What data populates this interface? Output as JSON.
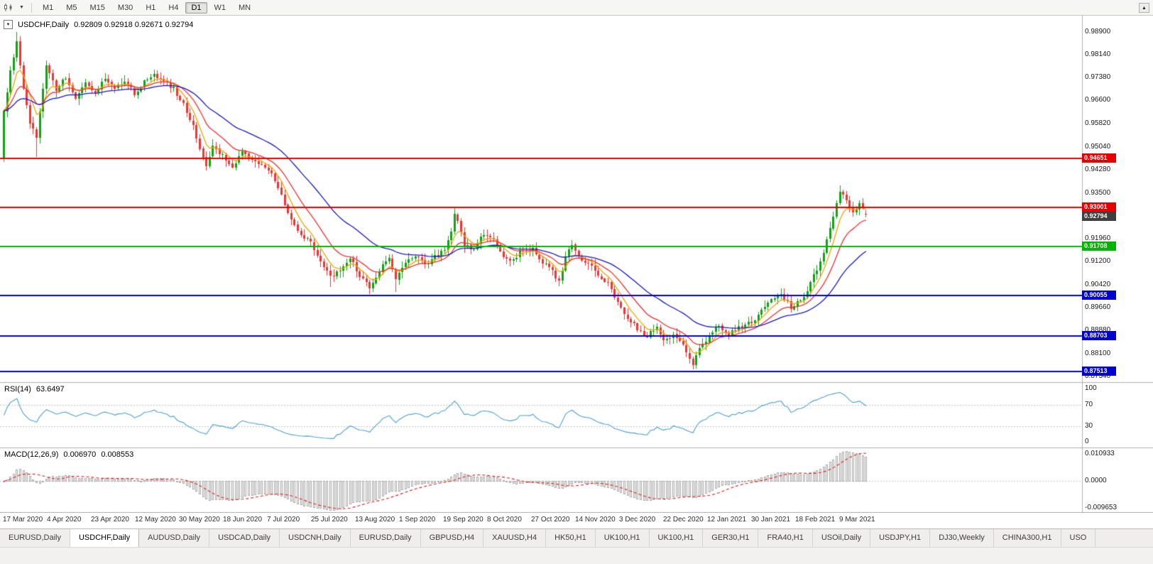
{
  "toolbar": {
    "timeframes": [
      "M1",
      "M5",
      "M15",
      "M30",
      "H1",
      "H4",
      "D1",
      "W1",
      "MN"
    ],
    "active_timeframe": "D1"
  },
  "chart_title": {
    "symbol": "USDCHF,Daily",
    "ohlc": "0.92809 0.92918 0.92671 0.92794"
  },
  "chart_data": {
    "type": "candlestick",
    "symbol": "USDCHF",
    "period": "Daily",
    "x_labels": [
      "17 Mar 2020",
      "4 Apr 2020",
      "23 Apr 2020",
      "12 May 2020",
      "30 May 2020",
      "18 Jun 2020",
      "7 Jul 2020",
      "25 Jul 2020",
      "13 Aug 2020",
      "1 Sep 2020",
      "19 Sep 2020",
      "8 Oct 2020",
      "27 Oct 2020",
      "14 Nov 2020",
      "3 Dec 2020",
      "22 Dec 2020",
      "12 Jan 2021",
      "30 Jan 2021",
      "18 Feb 2021",
      "9 Mar 2021"
    ],
    "y_ticks": [
      "0.98900",
      "0.98140",
      "0.97380",
      "0.96600",
      "0.95820",
      "0.95040",
      "0.94280",
      "0.93500",
      "0.92740",
      "0.91960",
      "0.91200",
      "0.90420",
      "0.89660",
      "0.88880",
      "0.88100",
      "0.87340"
    ],
    "price_range": {
      "top": 0.99448,
      "bottom": 0.87149
    },
    "horizontal_lines": [
      {
        "price": 0.94651,
        "label": "0.94651",
        "color": "#e60000"
      },
      {
        "price": 0.93001,
        "label": "0.93001",
        "color": "#e60000"
      },
      {
        "price": 0.91708,
        "label": "0.91708",
        "color": "#00b400"
      },
      {
        "price": 0.90055,
        "label": "0.90055",
        "color": "#0000d2"
      },
      {
        "price": 0.88703,
        "label": "0.88703",
        "color": "#0000d2"
      },
      {
        "price": 0.87513,
        "label": "0.87513",
        "color": "#0000d2"
      }
    ],
    "current_price": {
      "label": "0.92794",
      "value": 0.92794,
      "color": "#3f3f3f"
    },
    "candles": {
      "up_color": "#0da314",
      "down_color": "#ef3434",
      "days": 265,
      "anchors": [
        [
          0,
          0.963
        ],
        [
          2,
          0.9755
        ],
        [
          4,
          0.986
        ],
        [
          6,
          0.9705
        ],
        [
          8,
          0.9585
        ],
        [
          10,
          0.9535
        ],
        [
          13,
          0.9785
        ],
        [
          16,
          0.9695
        ],
        [
          19,
          0.974
        ],
        [
          22,
          0.9665
        ],
        [
          25,
          0.972
        ],
        [
          28,
          0.969
        ],
        [
          31,
          0.9735
        ],
        [
          34,
          0.97
        ],
        [
          37,
          0.972
        ],
        [
          40,
          0.9685
        ],
        [
          43,
          0.972
        ],
        [
          46,
          0.975
        ],
        [
          49,
          0.9725
        ],
        [
          52,
          0.97
        ],
        [
          55,
          0.9645
        ],
        [
          58,
          0.9575
        ],
        [
          60,
          0.9505
        ],
        [
          62,
          0.9435
        ],
        [
          64,
          0.9505
        ],
        [
          67,
          0.9475
        ],
        [
          70,
          0.944
        ],
        [
          73,
          0.9485
        ],
        [
          76,
          0.946
        ],
        [
          79,
          0.945
        ],
        [
          82,
          0.941
        ],
        [
          85,
          0.934
        ],
        [
          88,
          0.9265
        ],
        [
          91,
          0.9205
        ],
        [
          94,
          0.9185
        ],
        [
          97,
          0.912
        ],
        [
          100,
          0.9065
        ],
        [
          103,
          0.909
        ],
        [
          106,
          0.913
        ],
        [
          109,
          0.9075
        ],
        [
          112,
          0.9035
        ],
        [
          115,
          0.909
        ],
        [
          118,
          0.913
        ],
        [
          120,
          0.9065
        ],
        [
          123,
          0.911
        ],
        [
          126,
          0.9145
        ],
        [
          129,
          0.9105
        ],
        [
          132,
          0.9135
        ],
        [
          135,
          0.9155
        ],
        [
          137,
          0.922
        ],
        [
          138,
          0.9285
        ],
        [
          139,
          0.925
        ],
        [
          141,
          0.9175
        ],
        [
          144,
          0.916
        ],
        [
          147,
          0.9215
        ],
        [
          150,
          0.919
        ],
        [
          153,
          0.914
        ],
        [
          156,
          0.9125
        ],
        [
          159,
          0.9165
        ],
        [
          162,
          0.916
        ],
        [
          165,
          0.912
        ],
        [
          168,
          0.909
        ],
        [
          170,
          0.905
        ],
        [
          172,
          0.913
        ],
        [
          174,
          0.918
        ],
        [
          176,
          0.914
        ],
        [
          179,
          0.911
        ],
        [
          182,
          0.9075
        ],
        [
          185,
          0.9045
        ],
        [
          188,
          0.8985
        ],
        [
          191,
          0.8925
        ],
        [
          194,
          0.8895
        ],
        [
          197,
          0.887
        ],
        [
          200,
          0.8895
        ],
        [
          202,
          0.8855
        ],
        [
          205,
          0.8875
        ],
        [
          208,
          0.8835
        ],
        [
          211,
          0.8775
        ],
        [
          213,
          0.8825
        ],
        [
          216,
          0.887
        ],
        [
          219,
          0.8905
        ],
        [
          222,
          0.8875
        ],
        [
          225,
          0.89
        ],
        [
          229,
          0.8915
        ],
        [
          232,
          0.8955
        ],
        [
          235,
          0.8995
        ],
        [
          238,
          0.9015
        ],
        [
          241,
          0.8965
        ],
        [
          243,
          0.8985
        ],
        [
          245,
          0.8995
        ],
        [
          247,
          0.9045
        ],
        [
          249,
          0.9095
        ],
        [
          251,
          0.9155
        ],
        [
          253,
          0.9235
        ],
        [
          255,
          0.931
        ],
        [
          256,
          0.9355
        ],
        [
          258,
          0.933
        ],
        [
          260,
          0.9285
        ],
        [
          262,
          0.932
        ],
        [
          264,
          0.92794
        ]
      ],
      "wick_events": [
        {
          "day": 4,
          "high": 0.989
        },
        {
          "day": 10,
          "low": 0.947
        },
        {
          "day": 62,
          "low": 0.9425
        },
        {
          "day": 100,
          "low": 0.9035
        },
        {
          "day": 112,
          "low": 0.9015
        },
        {
          "day": 120,
          "low": 0.9018
        },
        {
          "day": 138,
          "high": 0.9296
        },
        {
          "day": 170,
          "low": 0.904
        },
        {
          "day": 211,
          "low": 0.8757
        },
        {
          "day": 256,
          "high": 0.9375
        }
      ],
      "last": {
        "open": 0.92809,
        "high": 0.92918,
        "low": 0.92671,
        "close": 0.92794
      }
    },
    "moving_averages": [
      {
        "period": 6,
        "color": "#f0a500"
      },
      {
        "period": 14,
        "color": "#f03030"
      },
      {
        "period": 34,
        "color": "#1818cc"
      }
    ],
    "rsi": {
      "label": "RSI(14)",
      "value": "63.6497",
      "period": 14,
      "levels": [
        "100",
        "70",
        "30",
        "0"
      ],
      "color": "#4f9fd8"
    },
    "macd": {
      "label": "MACD(12,26,9)",
      "main": "0.006970",
      "signal": "0.008553",
      "fast": 12,
      "slow": 26,
      "signal_period": 9,
      "axis_labels": [
        "0.010933",
        "0.0000",
        "-0.009653"
      ],
      "histogram_color": "#a9a9a9",
      "signal_color": "#e02020"
    }
  },
  "bottom_tabs": [
    {
      "label": "EURUSD,Daily"
    },
    {
      "label": "USDCHF,Daily",
      "active": true
    },
    {
      "label": "AUDUSD,Daily"
    },
    {
      "label": "USDCAD,Daily"
    },
    {
      "label": "USDCNH,Daily"
    },
    {
      "label": "EURUSD,Daily"
    },
    {
      "label": "GBPUSD,H4"
    },
    {
      "label": "XAUUSD,H4"
    },
    {
      "label": "HK50,H1"
    },
    {
      "label": "UK100,H1"
    },
    {
      "label": "UK100,H1"
    },
    {
      "label": "GER30,H1"
    },
    {
      "label": "FRA40,H1"
    },
    {
      "label": "USOil,Daily"
    },
    {
      "label": "USDJPY,H1"
    },
    {
      "label": "DJ30,Weekly"
    },
    {
      "label": "CHINA300,H1"
    },
    {
      "label": "USO"
    }
  ]
}
